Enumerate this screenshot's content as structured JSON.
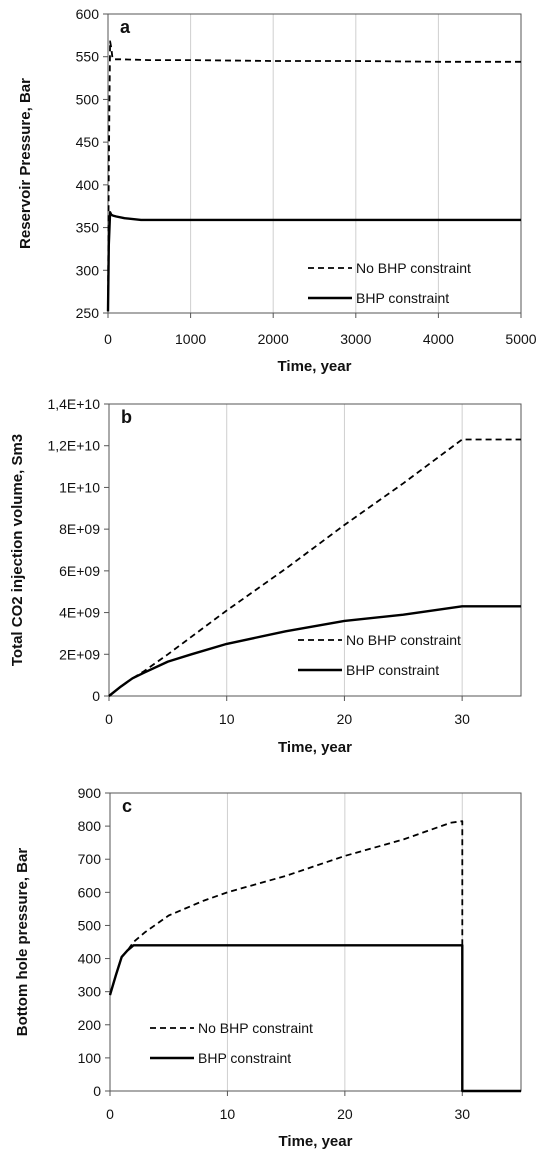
{
  "chart_data": [
    {
      "panel_label": "a",
      "type": "line",
      "xlabel": "Time, year",
      "ylabel": "Reservoir Pressure, Bar",
      "xlim": [
        0,
        5000
      ],
      "ylim": [
        250,
        600
      ],
      "xticks": [
        0,
        1000,
        2000,
        3000,
        4000,
        5000
      ],
      "xtick_labels": [
        "0",
        "1000",
        "2000",
        "3000",
        "4000",
        "5000"
      ],
      "yticks": [
        250,
        300,
        350,
        400,
        450,
        500,
        550,
        600
      ],
      "ytick_labels": [
        "250",
        "300",
        "350",
        "400",
        "450",
        "500",
        "550",
        "600"
      ],
      "grid": "vertical",
      "legend_position": "bottom-right",
      "series": [
        {
          "name": "No BHP constraint",
          "style": "dashed",
          "x": [
            0,
            10,
            25,
            40,
            55,
            80,
            150,
            500,
            1000,
            2000,
            3000,
            4000,
            5000
          ],
          "y": [
            252,
            420,
            568,
            560,
            548,
            547,
            547,
            546,
            546,
            545,
            545,
            544,
            544
          ]
        },
        {
          "name": "BHP constraint",
          "style": "solid",
          "x": [
            0,
            10,
            25,
            40,
            60,
            100,
            200,
            400,
            800,
            2000,
            3000,
            4000,
            5000
          ],
          "y": [
            252,
            330,
            368,
            365,
            364,
            363,
            361,
            359,
            359,
            359,
            359,
            359,
            359
          ]
        }
      ]
    },
    {
      "panel_label": "b",
      "type": "line",
      "xlabel": "Time, year",
      "ylabel": "Total CO2 injection volume, Sm3",
      "xlim": [
        0,
        35
      ],
      "ylim": [
        0,
        14000000000
      ],
      "xticks": [
        0,
        10,
        20,
        30
      ],
      "xtick_labels": [
        "0",
        "10",
        "20",
        "30"
      ],
      "yticks": [
        0,
        2000000000,
        4000000000,
        6000000000,
        8000000000,
        10000000000,
        12000000000,
        14000000000
      ],
      "ytick_labels": [
        "0",
        "2E+09",
        "4E+09",
        "6E+09",
        "8E+09",
        "1E+10",
        "1,2E+10",
        "1,4E+10"
      ],
      "grid": "vertical",
      "legend_position": "bottom-right",
      "series": [
        {
          "name": "No BHP constraint",
          "style": "dashed",
          "x": [
            0,
            1,
            2,
            3,
            5,
            10,
            15,
            20,
            25,
            30,
            32,
            35
          ],
          "y": [
            0,
            450000000,
            850000000,
            1200000000,
            2000000000,
            4100000000,
            6100000000,
            8200000000,
            10200000000,
            12300000000,
            12300000000,
            12300000000
          ]
        },
        {
          "name": "BHP constraint",
          "style": "solid",
          "x": [
            0,
            1,
            2,
            3,
            5,
            7,
            10,
            15,
            20,
            25,
            30,
            32,
            35
          ],
          "y": [
            0,
            450000000,
            850000000,
            1120000000,
            1650000000,
            2000000000,
            2500000000,
            3100000000,
            3600000000,
            3900000000,
            4300000000,
            4300000000,
            4300000000
          ]
        }
      ]
    },
    {
      "panel_label": "c",
      "type": "line",
      "xlabel": "Time, year",
      "ylabel": "Bottom hole pressure, Bar",
      "xlim": [
        0,
        35
      ],
      "ylim": [
        0,
        900
      ],
      "xticks": [
        0,
        10,
        20,
        30
      ],
      "xtick_labels": [
        "0",
        "10",
        "20",
        "30"
      ],
      "yticks": [
        0,
        100,
        200,
        300,
        400,
        500,
        600,
        700,
        800,
        900
      ],
      "ytick_labels": [
        "0",
        "100",
        "200",
        "300",
        "400",
        "500",
        "600",
        "700",
        "800",
        "900"
      ],
      "grid": "vertical",
      "legend_position": "bottom-left",
      "series": [
        {
          "name": "No BHP constraint",
          "style": "dashed",
          "x": [
            0,
            0.5,
            1,
            1.5,
            2,
            3,
            5,
            8,
            10,
            15,
            20,
            25,
            29,
            30,
            30,
            35
          ],
          "y": [
            290,
            350,
            405,
            425,
            450,
            480,
            530,
            575,
            600,
            650,
            710,
            760,
            810,
            815,
            0,
            0
          ]
        },
        {
          "name": "BHP constraint",
          "style": "solid",
          "x": [
            0,
            0.5,
            1,
            1.5,
            2,
            10,
            20,
            30,
            30,
            35
          ],
          "y": [
            290,
            350,
            405,
            425,
            440,
            440,
            440,
            440,
            0,
            0
          ]
        }
      ]
    }
  ]
}
